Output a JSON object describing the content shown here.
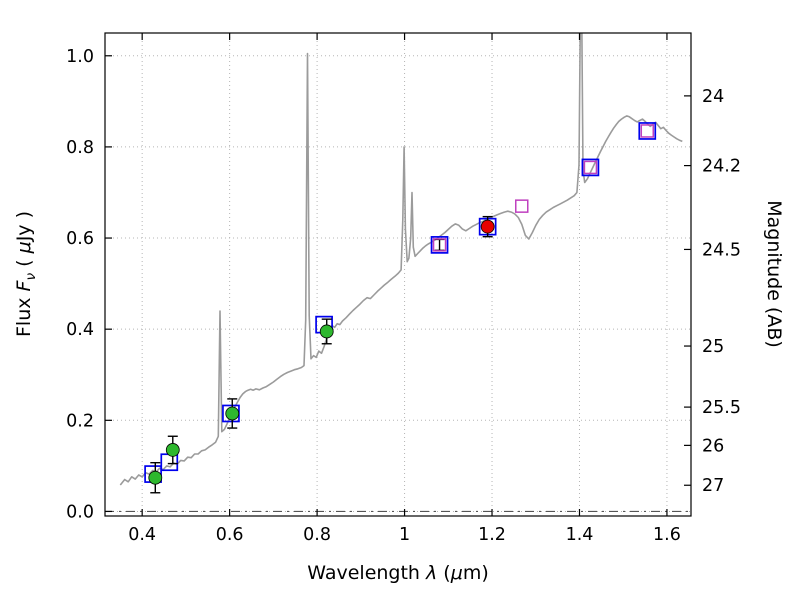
{
  "chart_data": {
    "type": "line",
    "title": "",
    "xlabel": "Wavelength λ (μm)",
    "ylabel": "Flux Fν ( μJy )",
    "ylabel_right": "Magnitude (AB)",
    "labels": {
      "x_prefix": "Wavelength ",
      "x_symbol": "λ",
      "x_open": " (",
      "x_mu": "μ",
      "x_close": "m)",
      "y_prefix": "Flux ",
      "y_symbol": "F",
      "y_sub": "ν",
      "y_open": " ( ",
      "y_mu": "μ",
      "y_close": "Jy )",
      "y_right": "Magnitude (AB)"
    },
    "xlim": [
      0.315,
      1.655
    ],
    "ylim": [
      -0.01,
      1.05
    ],
    "grid": true,
    "zero_line_y": 0.0,
    "xticks": {
      "values": [
        0.4,
        0.6,
        0.8,
        1.0,
        1.2,
        1.4,
        1.6
      ],
      "labels": [
        "0.4",
        "0.6",
        "0.8",
        "1",
        "1.2",
        "1.4",
        "1.6"
      ]
    },
    "yticks": {
      "values": [
        0.0,
        0.2,
        0.4,
        0.6,
        0.8,
        1.0
      ],
      "labels": [
        "0.0",
        "0.2",
        "0.4",
        "0.6",
        "0.8",
        "1.0"
      ]
    },
    "right_ticks": {
      "flux_values": [
        0.912,
        0.759,
        0.575,
        0.363,
        0.229,
        0.145,
        0.0575
      ],
      "labels": [
        "24",
        "24.2",
        "24.5",
        "25",
        "25.5",
        "26",
        "27"
      ]
    },
    "colors": {
      "grid": "#b5b5b5",
      "zero_line": "#555555",
      "spectrum": "#9b9b9b",
      "model_square": "#0000ee",
      "ir_square": "#bf40bf",
      "optical_circle": "#2eb82e",
      "nir_circle": "#e60000",
      "errorbar": "#000000",
      "spine": "#000000"
    },
    "series": [
      {
        "id": "spectrum",
        "name": "model spectrum",
        "type": "line",
        "color": "#9b9b9b",
        "xy": [
          [
            0.35,
            0.058
          ],
          [
            0.36,
            0.07
          ],
          [
            0.368,
            0.065
          ],
          [
            0.376,
            0.076
          ],
          [
            0.384,
            0.071
          ],
          [
            0.392,
            0.08
          ],
          [
            0.4,
            0.076
          ],
          [
            0.408,
            0.085
          ],
          [
            0.416,
            0.082
          ],
          [
            0.424,
            0.09
          ],
          [
            0.432,
            0.087
          ],
          [
            0.44,
            0.095
          ],
          [
            0.448,
            0.092
          ],
          [
            0.456,
            0.1
          ],
          [
            0.464,
            0.098
          ],
          [
            0.472,
            0.106
          ],
          [
            0.48,
            0.104
          ],
          [
            0.488,
            0.112
          ],
          [
            0.496,
            0.111
          ],
          [
            0.504,
            0.119
          ],
          [
            0.512,
            0.118
          ],
          [
            0.52,
            0.126
          ],
          [
            0.528,
            0.126
          ],
          [
            0.536,
            0.133
          ],
          [
            0.544,
            0.135
          ],
          [
            0.552,
            0.141
          ],
          [
            0.56,
            0.146
          ],
          [
            0.568,
            0.152
          ],
          [
            0.574,
            0.165
          ],
          [
            0.578,
            0.44
          ],
          [
            0.582,
            0.175
          ],
          [
            0.588,
            0.18
          ],
          [
            0.594,
            0.192
          ],
          [
            0.6,
            0.205
          ],
          [
            0.606,
            0.218
          ],
          [
            0.612,
            0.23
          ],
          [
            0.618,
            0.24
          ],
          [
            0.624,
            0.25
          ],
          [
            0.63,
            0.258
          ],
          [
            0.636,
            0.263
          ],
          [
            0.642,
            0.266
          ],
          [
            0.648,
            0.268
          ],
          [
            0.654,
            0.266
          ],
          [
            0.66,
            0.269
          ],
          [
            0.668,
            0.267
          ],
          [
            0.676,
            0.271
          ],
          [
            0.684,
            0.274
          ],
          [
            0.692,
            0.279
          ],
          [
            0.7,
            0.284
          ],
          [
            0.708,
            0.29
          ],
          [
            0.716,
            0.296
          ],
          [
            0.724,
            0.301
          ],
          [
            0.732,
            0.305
          ],
          [
            0.74,
            0.308
          ],
          [
            0.748,
            0.311
          ],
          [
            0.756,
            0.313
          ],
          [
            0.764,
            0.316
          ],
          [
            0.77,
            0.32
          ],
          [
            0.774,
            0.42
          ],
          [
            0.778,
            1.005
          ],
          [
            0.782,
            0.43
          ],
          [
            0.786,
            0.335
          ],
          [
            0.792,
            0.342
          ],
          [
            0.798,
            0.338
          ],
          [
            0.804,
            0.352
          ],
          [
            0.81,
            0.347
          ],
          [
            0.816,
            0.362
          ],
          [
            0.822,
            0.38
          ],
          [
            0.828,
            0.398
          ],
          [
            0.834,
            0.408
          ],
          [
            0.84,
            0.404
          ],
          [
            0.846,
            0.412
          ],
          [
            0.852,
            0.41
          ],
          [
            0.858,
            0.418
          ],
          [
            0.866,
            0.425
          ],
          [
            0.874,
            0.433
          ],
          [
            0.882,
            0.441
          ],
          [
            0.89,
            0.448
          ],
          [
            0.898,
            0.455
          ],
          [
            0.906,
            0.463
          ],
          [
            0.914,
            0.469
          ],
          [
            0.922,
            0.467
          ],
          [
            0.93,
            0.475
          ],
          [
            0.938,
            0.483
          ],
          [
            0.946,
            0.49
          ],
          [
            0.954,
            0.497
          ],
          [
            0.962,
            0.503
          ],
          [
            0.97,
            0.51
          ],
          [
            0.978,
            0.516
          ],
          [
            0.986,
            0.523
          ],
          [
            0.992,
            0.53
          ],
          [
            0.996,
            0.64
          ],
          [
            0.999,
            0.8
          ],
          [
            1.002,
            0.62
          ],
          [
            1.006,
            0.548
          ],
          [
            1.01,
            0.556
          ],
          [
            1.014,
            0.6
          ],
          [
            1.017,
            0.7
          ],
          [
            1.02,
            0.58
          ],
          [
            1.024,
            0.56
          ],
          [
            1.03,
            0.566
          ],
          [
            1.036,
            0.572
          ],
          [
            1.042,
            0.578
          ],
          [
            1.048,
            0.583
          ],
          [
            1.054,
            0.587
          ],
          [
            1.06,
            0.59
          ],
          [
            1.068,
            0.595
          ],
          [
            1.076,
            0.6
          ],
          [
            1.084,
            0.606
          ],
          [
            1.092,
            0.612
          ],
          [
            1.1,
            0.619
          ],
          [
            1.108,
            0.626
          ],
          [
            1.116,
            0.631
          ],
          [
            1.124,
            0.628
          ],
          [
            1.132,
            0.62
          ],
          [
            1.14,
            0.616
          ],
          [
            1.148,
            0.621
          ],
          [
            1.156,
            0.626
          ],
          [
            1.164,
            0.63
          ],
          [
            1.172,
            0.634
          ],
          [
            1.18,
            0.637
          ],
          [
            1.188,
            0.641
          ],
          [
            1.196,
            0.645
          ],
          [
            1.204,
            0.648
          ],
          [
            1.212,
            0.651
          ],
          [
            1.22,
            0.654
          ],
          [
            1.228,
            0.657
          ],
          [
            1.236,
            0.659
          ],
          [
            1.244,
            0.657
          ],
          [
            1.252,
            0.653
          ],
          [
            1.26,
            0.645
          ],
          [
            1.268,
            0.63
          ],
          [
            1.276,
            0.606
          ],
          [
            1.284,
            0.598
          ],
          [
            1.292,
            0.612
          ],
          [
            1.3,
            0.628
          ],
          [
            1.308,
            0.641
          ],
          [
            1.316,
            0.65
          ],
          [
            1.324,
            0.657
          ],
          [
            1.332,
            0.662
          ],
          [
            1.34,
            0.667
          ],
          [
            1.348,
            0.671
          ],
          [
            1.356,
            0.675
          ],
          [
            1.364,
            0.679
          ],
          [
            1.372,
            0.683
          ],
          [
            1.38,
            0.688
          ],
          [
            1.388,
            0.693
          ],
          [
            1.394,
            0.7
          ],
          [
            1.399,
            0.76
          ],
          [
            1.402,
            1.1
          ],
          [
            1.405,
            1.1
          ],
          [
            1.408,
            0.75
          ],
          [
            1.412,
            0.722
          ],
          [
            1.418,
            0.73
          ],
          [
            1.424,
            0.742
          ],
          [
            1.43,
            0.754
          ],
          [
            1.436,
            0.766
          ],
          [
            1.442,
            0.778
          ],
          [
            1.448,
            0.79
          ],
          [
            1.454,
            0.801
          ],
          [
            1.46,
            0.812
          ],
          [
            1.466,
            0.822
          ],
          [
            1.472,
            0.832
          ],
          [
            1.478,
            0.841
          ],
          [
            1.484,
            0.849
          ],
          [
            1.49,
            0.856
          ],
          [
            1.496,
            0.861
          ],
          [
            1.502,
            0.865
          ],
          [
            1.508,
            0.868
          ],
          [
            1.514,
            0.866
          ],
          [
            1.52,
            0.862
          ],
          [
            1.526,
            0.858
          ],
          [
            1.532,
            0.855
          ],
          [
            1.538,
            0.858
          ],
          [
            1.544,
            0.861
          ],
          [
            1.55,
            0.856
          ],
          [
            1.556,
            0.85
          ],
          [
            1.562,
            0.845
          ],
          [
            1.568,
            0.85
          ],
          [
            1.574,
            0.854
          ],
          [
            1.58,
            0.847
          ],
          [
            1.586,
            0.84
          ],
          [
            1.592,
            0.843
          ],
          [
            1.598,
            0.836
          ],
          [
            1.604,
            0.83
          ],
          [
            1.61,
            0.826
          ],
          [
            1.616,
            0.822
          ],
          [
            1.622,
            0.818
          ],
          [
            1.628,
            0.815
          ],
          [
            1.635,
            0.812
          ]
        ]
      },
      {
        "id": "model-photometry",
        "name": "model photometry (open blue squares)",
        "type": "open-square",
        "color": "#0000ee",
        "size": 16,
        "stroke_width": 1.7,
        "points": [
          {
            "x": 0.425,
            "y": 0.082
          },
          {
            "x": 0.462,
            "y": 0.108
          },
          {
            "x": 0.603,
            "y": 0.215
          },
          {
            "x": 0.816,
            "y": 0.41
          },
          {
            "x": 1.08,
            "y": 0.585
          },
          {
            "x": 1.19,
            "y": 0.625
          },
          {
            "x": 1.425,
            "y": 0.755
          },
          {
            "x": 1.555,
            "y": 0.835
          }
        ]
      },
      {
        "id": "ir-photometry",
        "name": "IR photometry (open magenta squares)",
        "type": "open-square",
        "color": "#bf40bf",
        "size": 12,
        "stroke_width": 1.5,
        "points": [
          {
            "x": 1.08,
            "y": 0.585,
            "err": 0.012
          },
          {
            "x": 1.268,
            "y": 0.67
          },
          {
            "x": 1.425,
            "y": 0.755
          },
          {
            "x": 1.555,
            "y": 0.835
          }
        ]
      },
      {
        "id": "optical-observed",
        "name": "observed optical photometry (green circles)",
        "type": "filled-circle",
        "color": "#2eb82e",
        "size": 13,
        "points": [
          {
            "x": 0.43,
            "y": 0.074,
            "err": 0.033
          },
          {
            "x": 0.47,
            "y": 0.135,
            "err": 0.03
          },
          {
            "x": 0.606,
            "y": 0.215,
            "err": 0.032
          },
          {
            "x": 0.822,
            "y": 0.395,
            "err": 0.027
          }
        ]
      },
      {
        "id": "nir-observed",
        "name": "observed NIR photometry (red circle)",
        "type": "filled-circle",
        "color": "#e60000",
        "size": 13,
        "points": [
          {
            "x": 1.19,
            "y": 0.625,
            "err": 0.022
          }
        ]
      }
    ]
  }
}
